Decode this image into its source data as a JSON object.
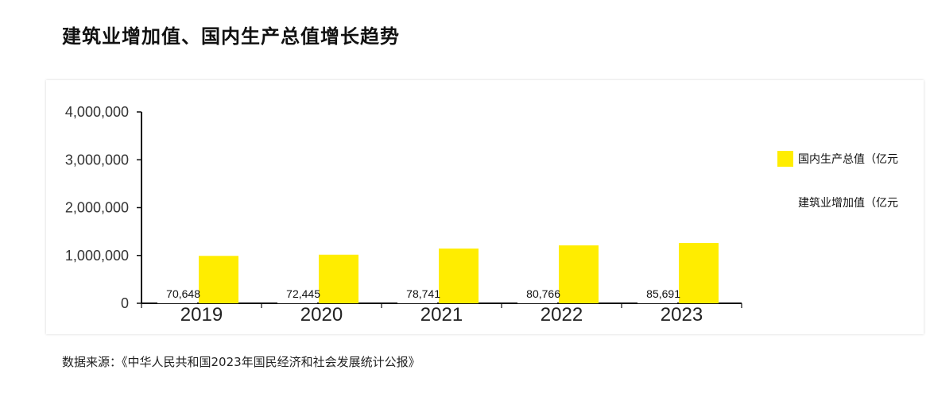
{
  "page": {
    "title": "建筑业增加值、国内生产总值增长趋势",
    "source": "数据来源：《中华人民共和国2023年国民经济和社会发展统计公报》"
  },
  "chart_data": {
    "type": "bar",
    "categories": [
      "2019",
      "2020",
      "2021",
      "2022",
      "2023"
    ],
    "series": [
      {
        "name": "国内生产总值（亿元）",
        "values": [
          990865,
          1015986,
          1143670,
          1210207,
          1260582
        ],
        "color": "#ffed00",
        "data_labels": false
      },
      {
        "name": "建筑业增加值（亿元）",
        "values": [
          70648,
          72445,
          78741,
          80766,
          85691
        ],
        "color": "#ffffff",
        "data_labels": true
      }
    ],
    "y_ticks": [
      "0",
      "1,000,000",
      "2,000,000",
      "3,000,000",
      "4,000,000"
    ],
    "ylim": [
      0,
      4000000
    ],
    "legend": {
      "position": "right",
      "items": [
        "国内生产总值（亿元",
        "建筑业增加值（亿元"
      ]
    },
    "grid": false
  }
}
